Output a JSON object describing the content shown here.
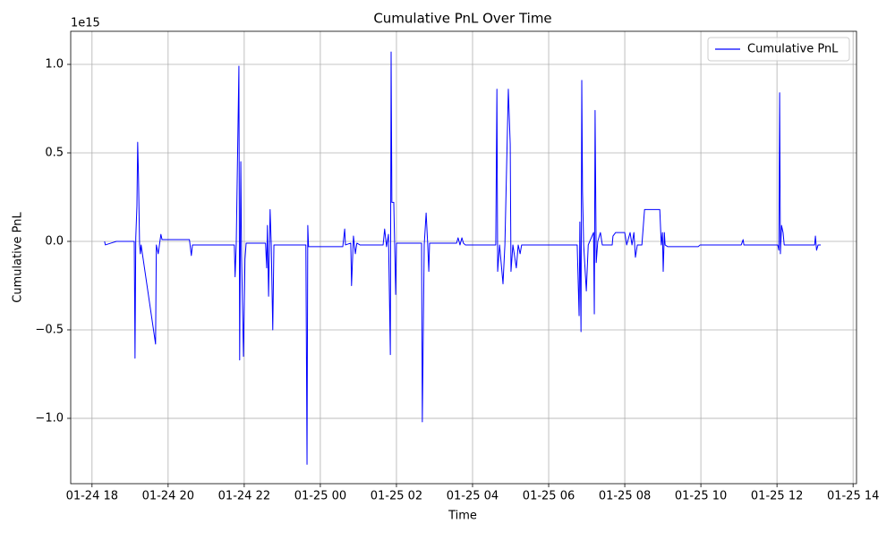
{
  "chart_data": {
    "type": "line",
    "title": "Cumulative PnL Over Time",
    "x_label": "Time",
    "y_label": "Cumulative PnL",
    "y_offset_label": "1e15",
    "x": [
      18.33,
      18.35,
      18.64,
      19.11,
      19.13,
      19.15,
      19.18,
      19.2,
      19.22,
      19.25,
      19.27,
      19.29,
      19.67,
      19.69,
      19.74,
      19.81,
      19.84,
      20.56,
      20.61,
      20.64,
      21.74,
      21.76,
      21.79,
      21.86,
      21.88,
      21.91,
      21.93,
      21.98,
      22.02,
      22.05,
      22.56,
      22.59,
      22.61,
      22.64,
      22.68,
      22.71,
      22.75,
      22.78,
      23.62,
      23.65,
      23.67,
      23.69,
      24.59,
      24.64,
      24.66,
      24.8,
      24.82,
      24.87,
      24.92,
      24.96,
      25.04,
      25.65,
      25.69,
      25.74,
      25.79,
      25.84,
      25.86,
      25.88,
      25.93,
      25.98,
      26.0,
      26.66,
      26.68,
      26.73,
      26.78,
      26.82,
      26.85,
      26.87,
      27.58,
      27.62,
      27.67,
      27.72,
      27.76,
      27.81,
      28.61,
      28.64,
      28.66,
      28.71,
      28.8,
      28.85,
      28.94,
      28.99,
      29.01,
      29.06,
      29.15,
      29.2,
      29.25,
      29.29,
      30.75,
      30.8,
      30.82,
      30.85,
      30.87,
      30.89,
      30.92,
      30.99,
      31.04,
      31.18,
      31.2,
      31.22,
      31.25,
      31.29,
      31.36,
      31.41,
      31.67,
      31.69,
      31.76,
      32.0,
      32.05,
      32.14,
      32.19,
      32.24,
      32.28,
      32.33,
      32.45,
      32.52,
      32.92,
      32.96,
      32.99,
      33.01,
      33.04,
      33.06,
      33.13,
      33.93,
      33.98,
      35.06,
      35.11,
      35.13,
      36.02,
      36.05,
      36.07,
      36.09,
      36.12,
      36.16,
      36.19,
      36.99,
      37.01,
      37.04,
      37.08,
      37.15
    ],
    "series": [
      {
        "name": "Cumulative PnL",
        "color": "#0000ff",
        "values": [
          0,
          -0.02,
          0.0,
          0.0,
          -0.66,
          0.02,
          0.2,
          0.56,
          0.38,
          -0.02,
          -0.07,
          -0.02,
          -0.58,
          -0.02,
          -0.07,
          0.04,
          0.01,
          0.01,
          -0.08,
          -0.02,
          -0.02,
          -0.2,
          -0.02,
          0.99,
          -0.67,
          0.45,
          -0.08,
          -0.65,
          -0.1,
          -0.01,
          -0.01,
          -0.15,
          0.09,
          -0.31,
          0.18,
          -0.02,
          -0.5,
          -0.02,
          -0.02,
          -1.26,
          0.09,
          -0.03,
          -0.03,
          0.07,
          -0.02,
          -0.01,
          -0.25,
          0.03,
          -0.07,
          -0.01,
          -0.02,
          -0.02,
          0.07,
          -0.03,
          0.04,
          -0.64,
          1.07,
          0.22,
          0.22,
          -0.3,
          -0.01,
          -0.01,
          -1.02,
          -0.02,
          0.16,
          -0.01,
          -0.17,
          -0.01,
          -0.01,
          0.02,
          -0.02,
          0.02,
          -0.01,
          -0.02,
          -0.02,
          0.86,
          -0.17,
          -0.02,
          -0.24,
          -0.02,
          0.86,
          0.55,
          -0.17,
          -0.02,
          -0.15,
          -0.02,
          -0.07,
          -0.02,
          -0.02,
          -0.42,
          0.11,
          -0.51,
          0.91,
          0.28,
          -0.02,
          -0.28,
          -0.02,
          0.05,
          -0.41,
          0.74,
          -0.12,
          0.0,
          0.05,
          -0.02,
          -0.02,
          0.03,
          0.05,
          0.05,
          -0.02,
          0.05,
          -0.02,
          0.05,
          -0.09,
          -0.02,
          -0.02,
          0.18,
          0.18,
          -0.02,
          0.05,
          -0.17,
          0.05,
          -0.02,
          -0.03,
          -0.03,
          -0.02,
          -0.02,
          0.01,
          -0.02,
          -0.02,
          -0.05,
          0.84,
          -0.07,
          0.09,
          0.05,
          -0.02,
          -0.02,
          0.03,
          -0.05,
          -0.02,
          -0.02
        ]
      }
    ],
    "xlim": [
      17.44,
      38.09
    ],
    "xticks": [
      {
        "value": 18,
        "label": "01-24 18"
      },
      {
        "value": 20,
        "label": "01-24 20"
      },
      {
        "value": 22,
        "label": "01-24 22"
      },
      {
        "value": 24,
        "label": "01-25 00"
      },
      {
        "value": 26,
        "label": "01-25 02"
      },
      {
        "value": 28,
        "label": "01-25 04"
      },
      {
        "value": 30,
        "label": "01-25 06"
      },
      {
        "value": 32,
        "label": "01-25 08"
      },
      {
        "value": 34,
        "label": "01-25 10"
      },
      {
        "value": 36,
        "label": "01-25 12"
      },
      {
        "value": 38,
        "label": "01-25 14"
      }
    ],
    "ylim": [
      -1.369,
      1.187
    ],
    "yticks": [
      {
        "value": -1.0,
        "label": "−1.0"
      },
      {
        "value": -0.5,
        "label": "−0.5"
      },
      {
        "value": 0.0,
        "label": "0.0"
      },
      {
        "value": 0.5,
        "label": "0.5"
      },
      {
        "value": 1.0,
        "label": "1.0"
      }
    ],
    "grid": true,
    "legend": "upper right"
  }
}
